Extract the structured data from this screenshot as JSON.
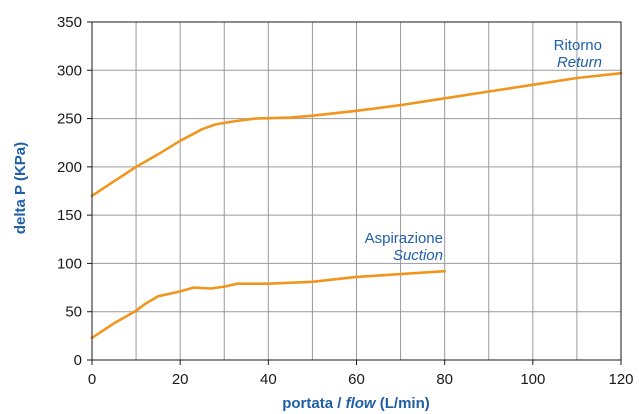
{
  "chart_data": {
    "type": "line",
    "xlabel_it": "portata /",
    "xlabel_en": "flow",
    "xlabel_unit": "(L/min)",
    "ylabel": "delta P (KPa)",
    "xlim": [
      0,
      120
    ],
    "ylim": [
      0,
      350
    ],
    "x_ticks": [
      "0",
      "20",
      "40",
      "60",
      "80",
      "100",
      "120"
    ],
    "y_ticks": [
      "0",
      "50",
      "100",
      "150",
      "200",
      "250",
      "300",
      "350"
    ],
    "grid": true,
    "colors": {
      "line": "#f0961e",
      "text": "#1f5fa8",
      "grid": "#9a9a9a"
    },
    "series": [
      {
        "name": "Ritorno",
        "name_en": "Return",
        "points": [
          [
            0,
            170
          ],
          [
            5,
            185
          ],
          [
            10,
            200
          ],
          [
            15,
            213
          ],
          [
            20,
            227
          ],
          [
            25,
            239
          ],
          [
            28,
            244
          ],
          [
            32,
            247
          ],
          [
            37,
            250
          ],
          [
            45,
            251
          ],
          [
            50,
            253
          ],
          [
            60,
            258
          ],
          [
            70,
            264
          ],
          [
            80,
            271
          ],
          [
            90,
            278
          ],
          [
            100,
            285
          ],
          [
            110,
            292
          ],
          [
            120,
            297
          ]
        ]
      },
      {
        "name": "Aspirazione",
        "name_en": "Suction",
        "points": [
          [
            0,
            23
          ],
          [
            5,
            38
          ],
          [
            10,
            51
          ],
          [
            12,
            58
          ],
          [
            15,
            66
          ],
          [
            20,
            71
          ],
          [
            23,
            75
          ],
          [
            27,
            74
          ],
          [
            30,
            76
          ],
          [
            33,
            79
          ],
          [
            40,
            79
          ],
          [
            50,
            81
          ],
          [
            60,
            86
          ],
          [
            70,
            89
          ],
          [
            80,
            92
          ]
        ]
      }
    ]
  }
}
